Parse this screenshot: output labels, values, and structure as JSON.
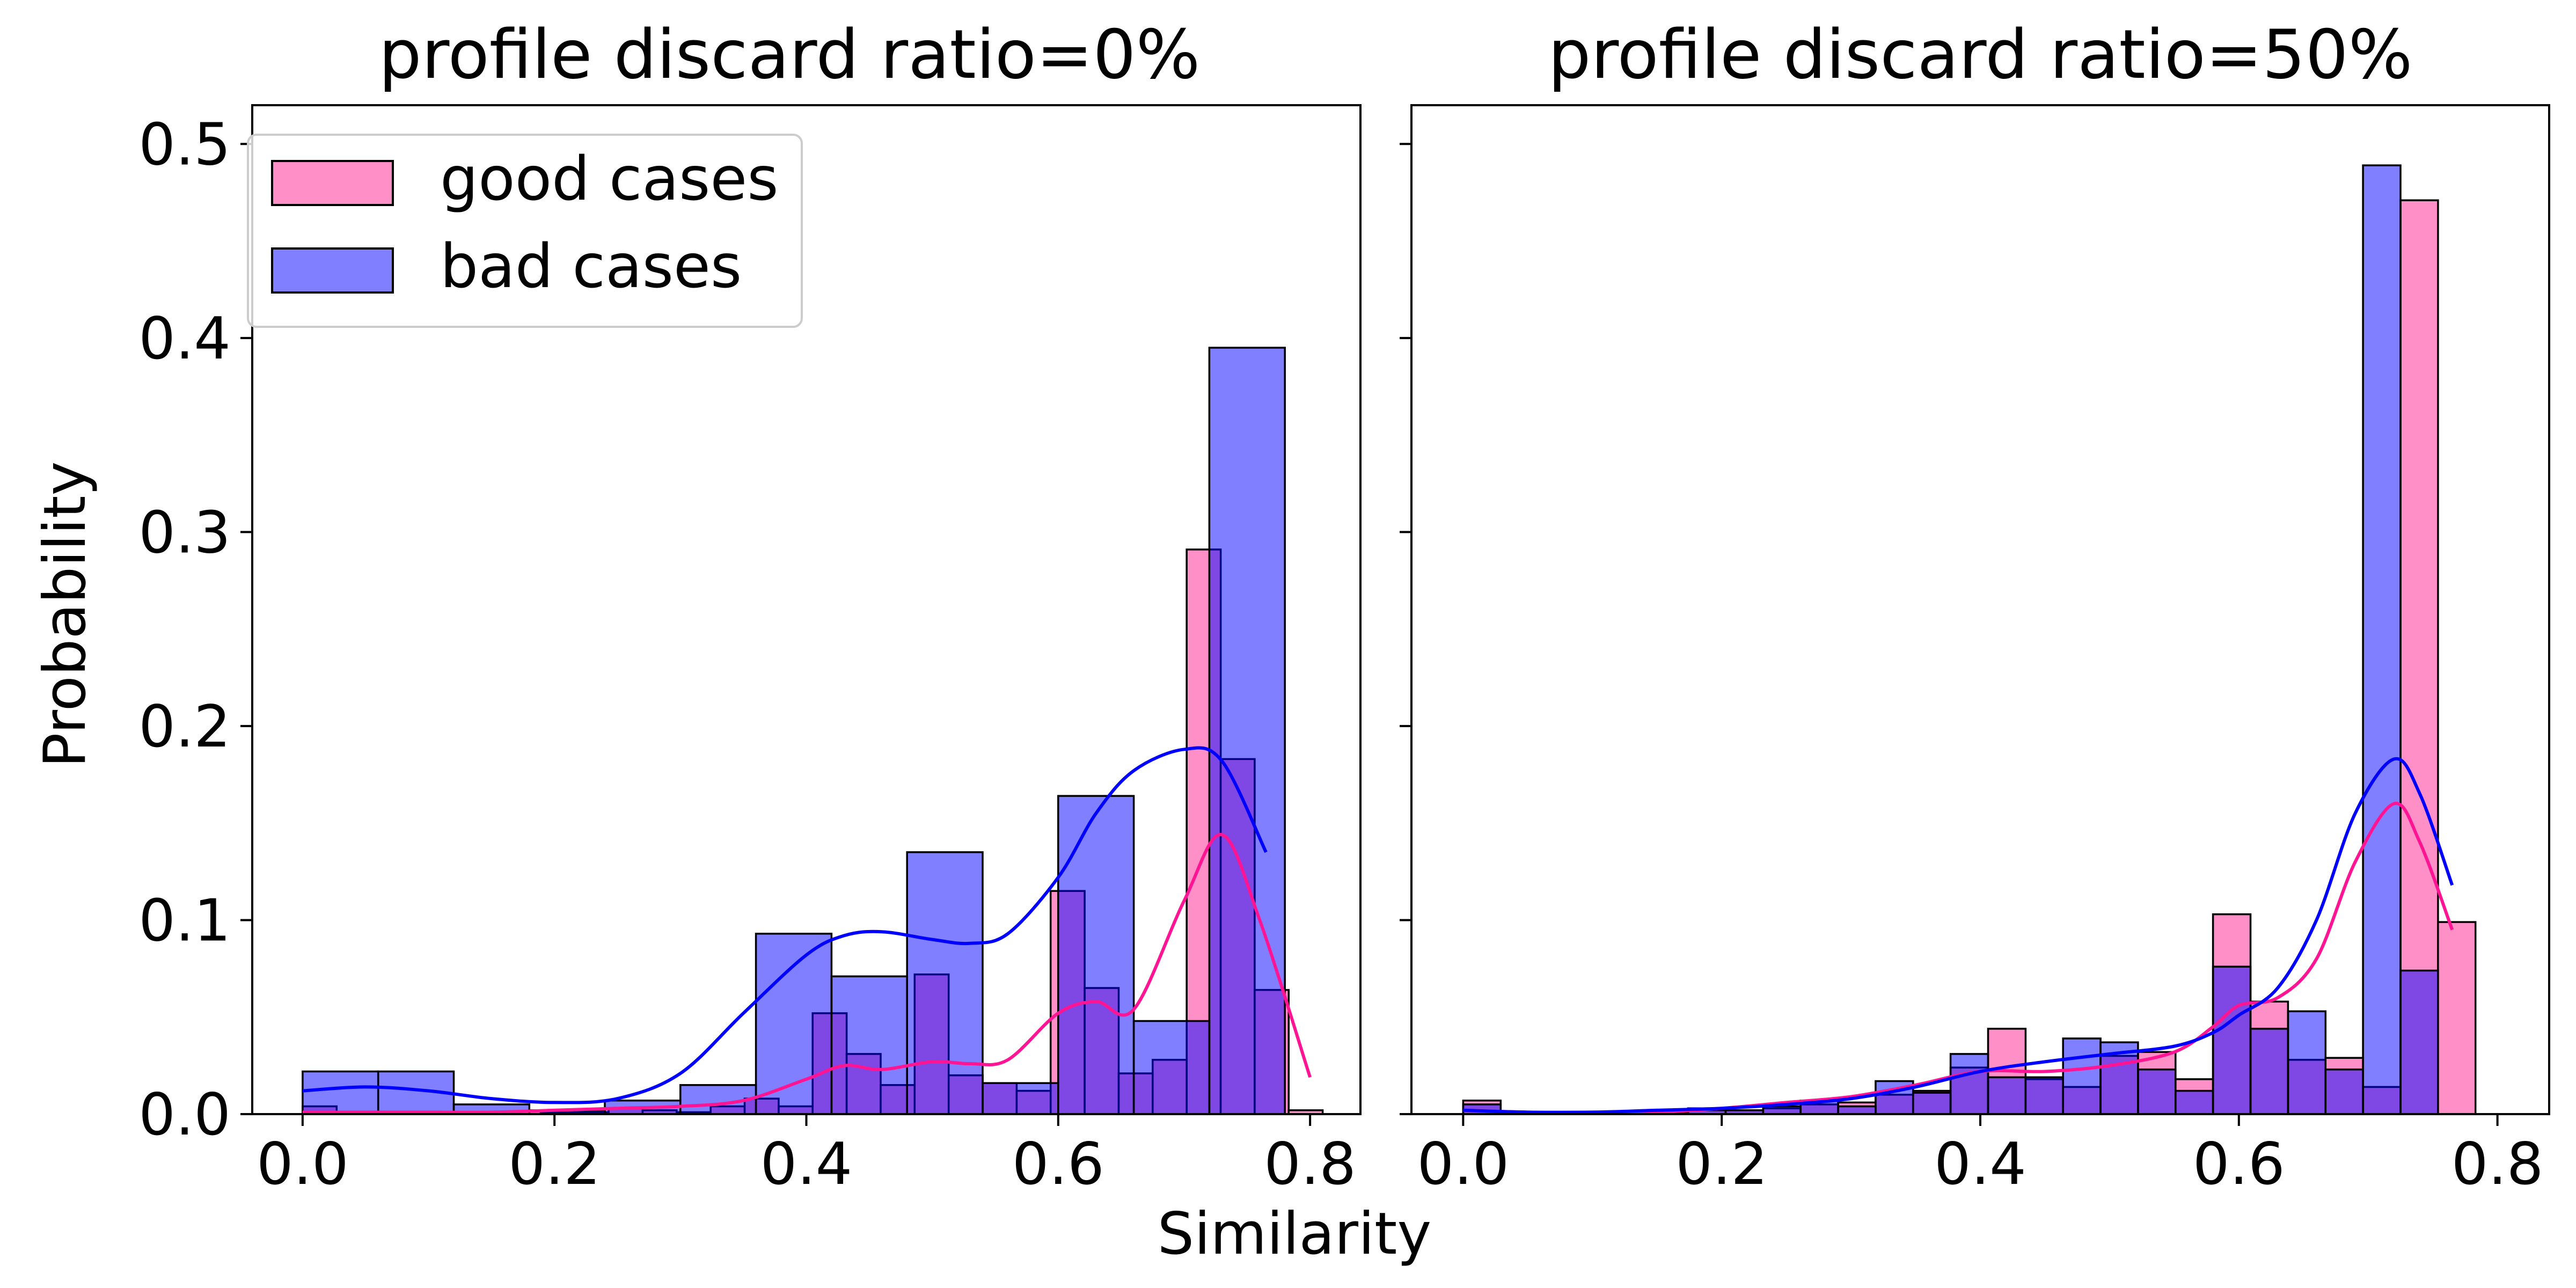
{
  "figure": {
    "xlabel": "Similarity",
    "ylabel": "Probability"
  },
  "legend": {
    "placement": "upper-left of first panel",
    "items": [
      {
        "label": "good cases",
        "color": "#ff69b4"
      },
      {
        "label": "bad cases",
        "color": "#0000ff"
      }
    ]
  },
  "colors": {
    "good_fill": "#ff69b4",
    "bad_fill": "#0000ff",
    "good_kde": "#ff1493",
    "bad_kde": "#0000ff",
    "overlap": "#7f35d9",
    "bar_edge": "#000000"
  },
  "chart_data": [
    {
      "type": "histogram",
      "title": "profile discard ratio=0%",
      "xlabel": "Similarity",
      "ylabel": "Probability",
      "xlim": [
        -0.04,
        0.84
      ],
      "ylim": [
        0,
        0.52
      ],
      "xticks": [
        "0.0",
        "0.2",
        "0.4",
        "0.6",
        "0.8"
      ],
      "yticks": [
        "0.0",
        "0.1",
        "0.2",
        "0.3",
        "0.4",
        "0.5"
      ],
      "grid": false,
      "series": [
        {
          "name": "good cases",
          "bins": [
            [
              0.0,
              0.027,
              0.004
            ],
            [
              0.027,
              0.054,
              0.0
            ],
            [
              0.054,
              0.081,
              0.0
            ],
            [
              0.081,
              0.108,
              0.0
            ],
            [
              0.108,
              0.135,
              0.0
            ],
            [
              0.135,
              0.162,
              0.0
            ],
            [
              0.162,
              0.189,
              0.0
            ],
            [
              0.189,
              0.216,
              0.001
            ],
            [
              0.216,
              0.243,
              0.001
            ],
            [
              0.243,
              0.27,
              0.003
            ],
            [
              0.27,
              0.297,
              0.002
            ],
            [
              0.297,
              0.324,
              0.001
            ],
            [
              0.324,
              0.351,
              0.004
            ],
            [
              0.351,
              0.378,
              0.008
            ],
            [
              0.378,
              0.405,
              0.004
            ],
            [
              0.405,
              0.432,
              0.052
            ],
            [
              0.432,
              0.459,
              0.031
            ],
            [
              0.459,
              0.486,
              0.015
            ],
            [
              0.486,
              0.513,
              0.072
            ],
            [
              0.513,
              0.54,
              0.02
            ],
            [
              0.54,
              0.567,
              0.016
            ],
            [
              0.567,
              0.594,
              0.012
            ],
            [
              0.594,
              0.621,
              0.115
            ],
            [
              0.621,
              0.648,
              0.065
            ],
            [
              0.648,
              0.675,
              0.021
            ],
            [
              0.675,
              0.702,
              0.028
            ],
            [
              0.702,
              0.729,
              0.291
            ],
            [
              0.729,
              0.756,
              0.183
            ],
            [
              0.756,
              0.783,
              0.064
            ],
            [
              0.783,
              0.81,
              0.002
            ]
          ]
        },
        {
          "name": "bad cases",
          "bins": [
            [
              0.0,
              0.06,
              0.022
            ],
            [
              0.06,
              0.12,
              0.022
            ],
            [
              0.12,
              0.18,
              0.005
            ],
            [
              0.18,
              0.24,
              0.002
            ],
            [
              0.24,
              0.3,
              0.007
            ],
            [
              0.3,
              0.36,
              0.015
            ],
            [
              0.36,
              0.42,
              0.093
            ],
            [
              0.42,
              0.48,
              0.071
            ],
            [
              0.48,
              0.54,
              0.135
            ],
            [
              0.54,
              0.6,
              0.016
            ],
            [
              0.6,
              0.66,
              0.164
            ],
            [
              0.66,
              0.72,
              0.048
            ],
            [
              0.72,
              0.78,
              0.395
            ]
          ]
        }
      ],
      "kde": [
        {
          "name": "good cases",
          "x": [
            0.0,
            0.05,
            0.1,
            0.15,
            0.2,
            0.25,
            0.3,
            0.35,
            0.4,
            0.43,
            0.46,
            0.5,
            0.53,
            0.56,
            0.6,
            0.63,
            0.66,
            0.7,
            0.73,
            0.76,
            0.8
          ],
          "y": [
            0.001,
            0.001,
            0.001,
            0.001,
            0.002,
            0.003,
            0.004,
            0.007,
            0.018,
            0.025,
            0.023,
            0.027,
            0.026,
            0.028,
            0.052,
            0.058,
            0.054,
            0.11,
            0.144,
            0.1,
            0.019
          ]
        },
        {
          "name": "bad cases",
          "x": [
            0.0,
            0.05,
            0.1,
            0.15,
            0.2,
            0.25,
            0.3,
            0.35,
            0.4,
            0.43,
            0.46,
            0.5,
            0.53,
            0.56,
            0.6,
            0.63,
            0.66,
            0.7,
            0.73,
            0.765
          ],
          "y": [
            0.012,
            0.014,
            0.012,
            0.008,
            0.006,
            0.008,
            0.021,
            0.052,
            0.082,
            0.092,
            0.094,
            0.09,
            0.088,
            0.093,
            0.122,
            0.155,
            0.177,
            0.188,
            0.182,
            0.135
          ]
        }
      ]
    },
    {
      "type": "histogram",
      "title": "profile discard ratio=50%",
      "xlabel": "Similarity",
      "ylabel": "Probability",
      "xlim": [
        -0.04,
        0.84
      ],
      "ylim": [
        0,
        0.52
      ],
      "xticks": [
        "0.0",
        "0.2",
        "0.4",
        "0.6",
        "0.8"
      ],
      "yticks": [
        "0.0",
        "0.1",
        "0.2",
        "0.3",
        "0.4",
        "0.5"
      ],
      "grid": false,
      "series": [
        {
          "name": "good cases",
          "bins": [
            [
              0.0,
              0.029,
              0.007
            ],
            [
              0.029,
              0.058,
              0.0
            ],
            [
              0.058,
              0.087,
              0.0
            ],
            [
              0.087,
              0.116,
              0.0
            ],
            [
              0.116,
              0.145,
              0.0
            ],
            [
              0.145,
              0.174,
              0.0
            ],
            [
              0.174,
              0.203,
              0.003
            ],
            [
              0.203,
              0.232,
              0.002
            ],
            [
              0.232,
              0.261,
              0.003
            ],
            [
              0.261,
              0.29,
              0.005
            ],
            [
              0.29,
              0.319,
              0.006
            ],
            [
              0.319,
              0.348,
              0.01
            ],
            [
              0.348,
              0.377,
              0.012
            ],
            [
              0.377,
              0.406,
              0.024
            ],
            [
              0.406,
              0.435,
              0.044
            ],
            [
              0.435,
              0.464,
              0.018
            ],
            [
              0.464,
              0.493,
              0.014
            ],
            [
              0.493,
              0.522,
              0.03
            ],
            [
              0.522,
              0.551,
              0.032
            ],
            [
              0.551,
              0.58,
              0.018
            ],
            [
              0.58,
              0.609,
              0.103
            ],
            [
              0.609,
              0.638,
              0.058
            ],
            [
              0.638,
              0.667,
              0.028
            ],
            [
              0.667,
              0.696,
              0.029
            ],
            [
              0.696,
              0.725,
              0.014
            ],
            [
              0.725,
              0.754,
              0.471
            ],
            [
              0.754,
              0.783,
              0.099
            ]
          ]
        },
        {
          "name": "bad cases",
          "bins": [
            [
              0.0,
              0.029,
              0.005
            ],
            [
              0.029,
              0.058,
              0.001
            ],
            [
              0.058,
              0.087,
              0.0
            ],
            [
              0.087,
              0.116,
              0.001
            ],
            [
              0.116,
              0.145,
              0.0
            ],
            [
              0.145,
              0.174,
              0.001
            ],
            [
              0.174,
              0.203,
              0.002
            ],
            [
              0.203,
              0.232,
              0.002
            ],
            [
              0.232,
              0.261,
              0.004
            ],
            [
              0.261,
              0.29,
              0.007
            ],
            [
              0.29,
              0.319,
              0.004
            ],
            [
              0.319,
              0.348,
              0.017
            ],
            [
              0.348,
              0.377,
              0.011
            ],
            [
              0.377,
              0.406,
              0.031
            ],
            [
              0.406,
              0.435,
              0.019
            ],
            [
              0.435,
              0.464,
              0.019
            ],
            [
              0.464,
              0.493,
              0.039
            ],
            [
              0.493,
              0.522,
              0.037
            ],
            [
              0.522,
              0.551,
              0.023
            ],
            [
              0.551,
              0.58,
              0.012
            ],
            [
              0.58,
              0.609,
              0.076
            ],
            [
              0.609,
              0.638,
              0.044
            ],
            [
              0.638,
              0.667,
              0.053
            ],
            [
              0.667,
              0.696,
              0.023
            ],
            [
              0.696,
              0.725,
              0.489
            ],
            [
              0.725,
              0.754,
              0.074
            ]
          ]
        }
      ],
      "kde": [
        {
          "name": "good cases",
          "x": [
            0.0,
            0.05,
            0.1,
            0.15,
            0.2,
            0.25,
            0.3,
            0.35,
            0.4,
            0.45,
            0.5,
            0.55,
            0.58,
            0.6,
            0.63,
            0.66,
            0.69,
            0.72,
            0.74,
            0.765
          ],
          "y": [
            0.002,
            0.001,
            0.001,
            0.001,
            0.003,
            0.006,
            0.009,
            0.015,
            0.022,
            0.022,
            0.025,
            0.032,
            0.045,
            0.056,
            0.06,
            0.08,
            0.13,
            0.16,
            0.14,
            0.095
          ]
        },
        {
          "name": "bad cases",
          "x": [
            0.0,
            0.05,
            0.1,
            0.15,
            0.2,
            0.25,
            0.3,
            0.35,
            0.4,
            0.45,
            0.5,
            0.55,
            0.58,
            0.6,
            0.63,
            0.66,
            0.69,
            0.72,
            0.74,
            0.765
          ],
          "y": [
            0.002,
            0.001,
            0.001,
            0.002,
            0.003,
            0.005,
            0.008,
            0.014,
            0.022,
            0.027,
            0.031,
            0.035,
            0.042,
            0.051,
            0.065,
            0.1,
            0.155,
            0.183,
            0.165,
            0.118
          ]
        }
      ]
    }
  ]
}
